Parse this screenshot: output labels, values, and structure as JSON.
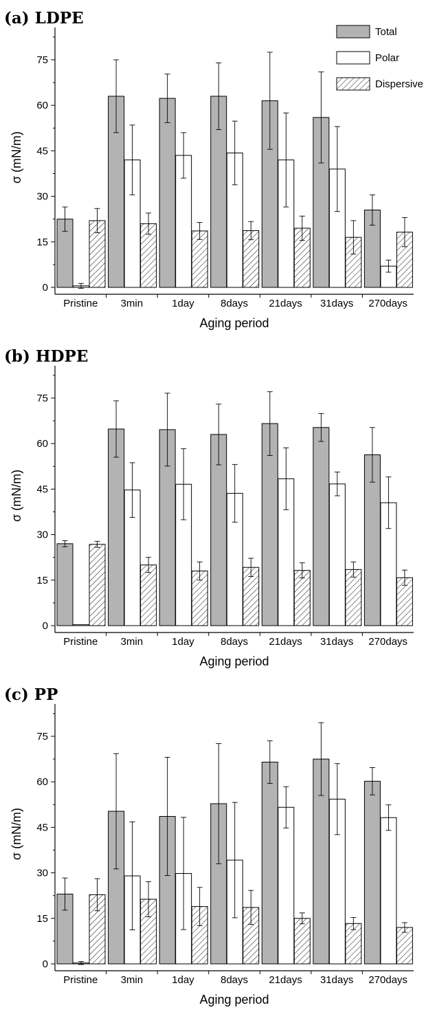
{
  "chart_data": [
    {
      "type": "bar",
      "title": "(a) LDPE",
      "xlabel": "Aging period",
      "ylabel": "σ (mN/m)",
      "ylim": [
        -2,
        85
      ],
      "yticks": [
        0,
        15,
        30,
        45,
        60,
        75
      ],
      "categories": [
        "Pristine",
        "3min",
        "1day",
        "8days",
        "21days",
        "31days",
        "270days"
      ],
      "legend": {
        "position": "top-right",
        "show": true
      },
      "series": [
        {
          "name": "Total",
          "pattern": "solid-gray",
          "values": [
            22.5,
            63,
            62.3,
            63,
            61.5,
            56,
            25.5
          ],
          "errors": [
            4.0,
            12.0,
            8.0,
            11.0,
            16.0,
            15.0,
            5.0
          ]
        },
        {
          "name": "Polar",
          "pattern": "white",
          "values": [
            0.5,
            42,
            43.5,
            44.3,
            42,
            39,
            7
          ],
          "errors": [
            0.8,
            11.5,
            7.5,
            10.5,
            15.5,
            14.0,
            2.0
          ]
        },
        {
          "name": "Dispersive",
          "pattern": "hatched",
          "values": [
            22,
            21,
            18.6,
            18.7,
            19.5,
            16.5,
            18.2
          ],
          "errors": [
            4.0,
            3.5,
            2.8,
            3.0,
            4.0,
            5.5,
            4.8
          ]
        }
      ]
    },
    {
      "type": "bar",
      "title": "(b) HDPE",
      "xlabel": "Aging period",
      "ylabel": "σ (mN/m)",
      "ylim": [
        -2,
        85
      ],
      "yticks": [
        0,
        15,
        30,
        45,
        60,
        75
      ],
      "categories": [
        "Pristine",
        "3min",
        "1day",
        "8days",
        "21days",
        "31days",
        "270days"
      ],
      "legend": {
        "show": false
      },
      "series": [
        {
          "name": "Total",
          "pattern": "solid-gray",
          "values": [
            27,
            64.8,
            64.6,
            63,
            66.6,
            65.3,
            56.3
          ],
          "errors": [
            1.0,
            9.3,
            12.0,
            10.0,
            10.5,
            4.6,
            9.0
          ]
        },
        {
          "name": "Polar",
          "pattern": "white",
          "values": [
            0.3,
            44.7,
            46.6,
            43.6,
            48.4,
            46.7,
            40.5
          ],
          "errors": [
            0,
            9.0,
            11.7,
            9.5,
            10.2,
            3.9,
            8.5
          ]
        },
        {
          "name": "Dispersive",
          "pattern": "hatched",
          "values": [
            26.8,
            20,
            18,
            19.2,
            18.2,
            18.5,
            15.8
          ],
          "errors": [
            1.0,
            2.5,
            3.0,
            3.0,
            2.5,
            2.5,
            2.5
          ]
        }
      ]
    },
    {
      "type": "bar",
      "title": "(c) PP",
      "xlabel": "Aging period",
      "ylabel": "σ (mN/m)",
      "ylim": [
        -2,
        85
      ],
      "yticks": [
        0,
        15,
        30,
        45,
        60,
        75
      ],
      "categories": [
        "Pristine",
        "3min",
        "1day",
        "8days",
        "21days",
        "31days",
        "270days"
      ],
      "legend": {
        "show": false
      },
      "series": [
        {
          "name": "Total",
          "pattern": "solid-gray",
          "values": [
            23,
            50.3,
            48.6,
            52.8,
            66.5,
            67.5,
            60.2
          ],
          "errors": [
            5.3,
            19.0,
            19.5,
            19.8,
            7.0,
            12.0,
            4.5
          ]
        },
        {
          "name": "Polar",
          "pattern": "white",
          "values": [
            0.3,
            29,
            29.8,
            34.2,
            51.6,
            54.3,
            48.2
          ],
          "errors": [
            0.5,
            17.8,
            18.5,
            19.0,
            6.8,
            11.7,
            4.2
          ]
        },
        {
          "name": "Dispersive",
          "pattern": "hatched",
          "values": [
            22.8,
            21.3,
            18.9,
            18.6,
            15,
            13.3,
            12
          ],
          "errors": [
            5.3,
            5.8,
            6.3,
            5.6,
            1.8,
            2.0,
            1.6
          ]
        }
      ]
    }
  ],
  "colors": {
    "total_fill": "#b3b3b3",
    "polar_fill": "#ffffff",
    "hatch_stroke": "#222222",
    "axis": "#000000"
  }
}
